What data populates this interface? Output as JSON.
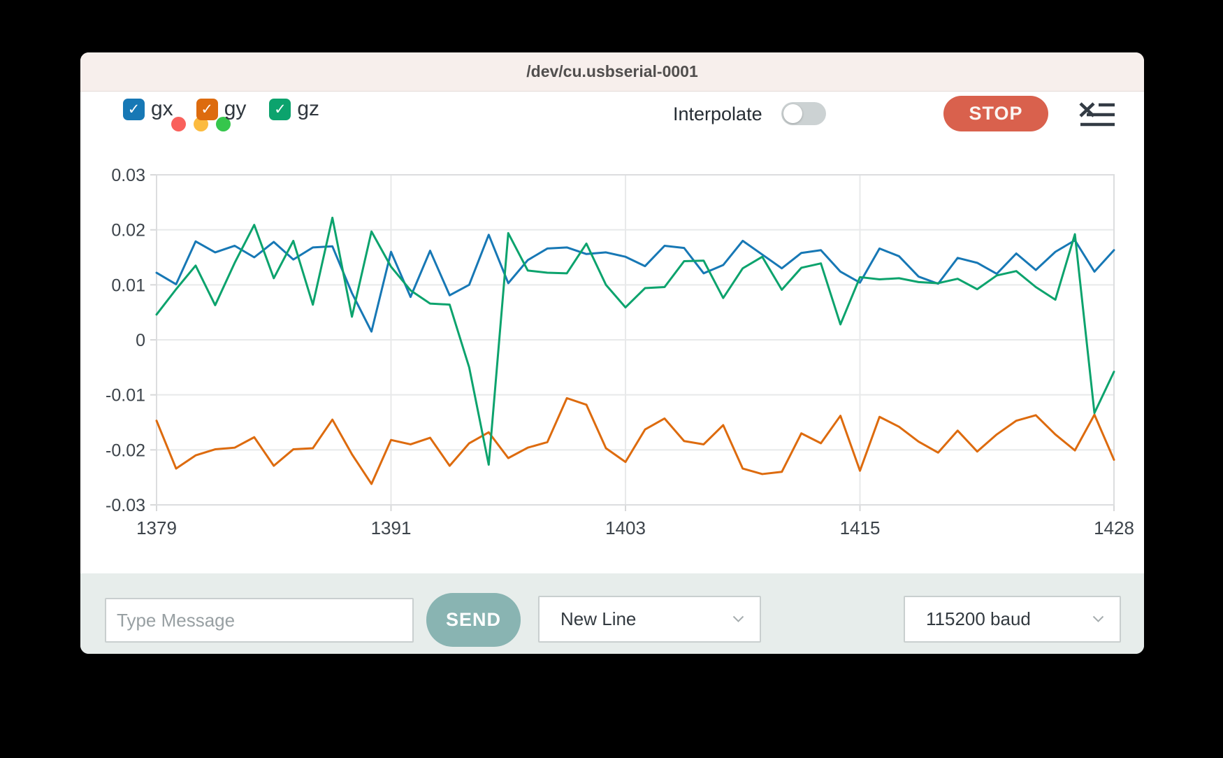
{
  "window": {
    "title": "/dev/cu.usbserial-0001"
  },
  "traffic_lights": {
    "close_color": "#f9615c",
    "minimize_color": "#fcbb3f",
    "zoom_color": "#36c64c"
  },
  "legend": {
    "check_glyph": "✓",
    "items": [
      {
        "label": "gx",
        "checked": true
      },
      {
        "label": "gy",
        "checked": true
      },
      {
        "label": "gz",
        "checked": true
      }
    ]
  },
  "toolbar": {
    "interpolate_label": "Interpolate",
    "interpolate_on": false,
    "stop_label": "STOP",
    "icons": [
      "clear-log-list-icon"
    ]
  },
  "chart_data": {
    "type": "line",
    "title": "",
    "xlabel": "",
    "ylabel": "",
    "grid": true,
    "legend_position": "top-left-toolbar",
    "xlim": [
      1379,
      1428
    ],
    "ylim": [
      -0.03,
      0.03
    ],
    "x_ticks": [
      1379,
      1391,
      1403,
      1415,
      1428
    ],
    "y_ticks": [
      0.03,
      0.02,
      0.01,
      0,
      -0.01,
      -0.02,
      -0.03
    ],
    "x": [
      1379,
      1380,
      1381,
      1382,
      1383,
      1384,
      1385,
      1386,
      1387,
      1388,
      1389,
      1390,
      1391,
      1392,
      1393,
      1394,
      1395,
      1396,
      1397,
      1398,
      1399,
      1400,
      1401,
      1402,
      1403,
      1404,
      1405,
      1406,
      1407,
      1408,
      1409,
      1410,
      1411,
      1412,
      1413,
      1414,
      1415,
      1416,
      1417,
      1418,
      1419,
      1420,
      1421,
      1422,
      1423,
      1424,
      1425,
      1426,
      1427,
      1428
    ],
    "series": [
      {
        "name": "gx",
        "color": "#1778b5",
        "values": [
          0.0122,
          0.0101,
          0.0179,
          0.0159,
          0.0171,
          0.015,
          0.0178,
          0.0146,
          0.0168,
          0.017,
          0.0085,
          0.0015,
          0.016,
          0.0078,
          0.0162,
          0.0081,
          0.01,
          0.0191,
          0.0103,
          0.0145,
          0.0166,
          0.0168,
          0.0156,
          0.0159,
          0.0151,
          0.0134,
          0.0171,
          0.0167,
          0.0121,
          0.0136,
          0.018,
          0.0155,
          0.013,
          0.0158,
          0.0163,
          0.0124,
          0.0104,
          0.0166,
          0.0152,
          0.0115,
          0.0102,
          0.0149,
          0.014,
          0.012,
          0.0157,
          0.0127,
          0.016,
          0.0181,
          0.0124,
          0.0163
        ]
      },
      {
        "name": "gy",
        "color": "#dd6b0e",
        "values": [
          -0.0147,
          -0.0234,
          -0.021,
          -0.0199,
          -0.0196,
          -0.0177,
          -0.0229,
          -0.0199,
          -0.0197,
          -0.0145,
          -0.0208,
          -0.0262,
          -0.0182,
          -0.019,
          -0.0178,
          -0.0229,
          -0.0188,
          -0.0168,
          -0.0215,
          -0.0196,
          -0.0186,
          -0.0106,
          -0.0118,
          -0.0197,
          -0.0222,
          -0.0163,
          -0.0143,
          -0.0184,
          -0.019,
          -0.0155,
          -0.0234,
          -0.0244,
          -0.024,
          -0.017,
          -0.0188,
          -0.0138,
          -0.0238,
          -0.014,
          -0.0158,
          -0.0185,
          -0.0205,
          -0.0165,
          -0.0203,
          -0.0172,
          -0.0147,
          -0.0137,
          -0.0172,
          -0.0201,
          -0.0136,
          -0.0218
        ]
      },
      {
        "name": "gz",
        "color": "#0ca36d",
        "values": [
          0.0046,
          0.0092,
          0.0135,
          0.0063,
          0.014,
          0.0209,
          0.0112,
          0.018,
          0.0064,
          0.0222,
          0.0042,
          0.0197,
          0.0133,
          0.009,
          0.0066,
          0.0064,
          -0.005,
          -0.0227,
          0.0194,
          0.0126,
          0.0122,
          0.0121,
          0.0175,
          0.01,
          0.0059,
          0.0094,
          0.0096,
          0.0143,
          0.0144,
          0.0076,
          0.013,
          0.0151,
          0.0091,
          0.0131,
          0.0139,
          0.0028,
          0.0114,
          0.011,
          0.0112,
          0.0105,
          0.0103,
          0.0111,
          0.0092,
          0.0117,
          0.0125,
          0.0096,
          0.0073,
          0.0192,
          -0.0133,
          -0.0058
        ]
      }
    ]
  },
  "composer": {
    "placeholder": "Type Message",
    "value": "",
    "send_label": "SEND",
    "line_ending_selected": "New Line",
    "baud_selected": "115200 baud"
  },
  "colors": {
    "titlebar_bg": "#f7efec",
    "stop_button": "#d9614d",
    "send_button": "#89b4b2",
    "bottombar_bg": "#e7edeb",
    "grid_line": "#e8e9ea",
    "axis_text": "#3d444b"
  }
}
